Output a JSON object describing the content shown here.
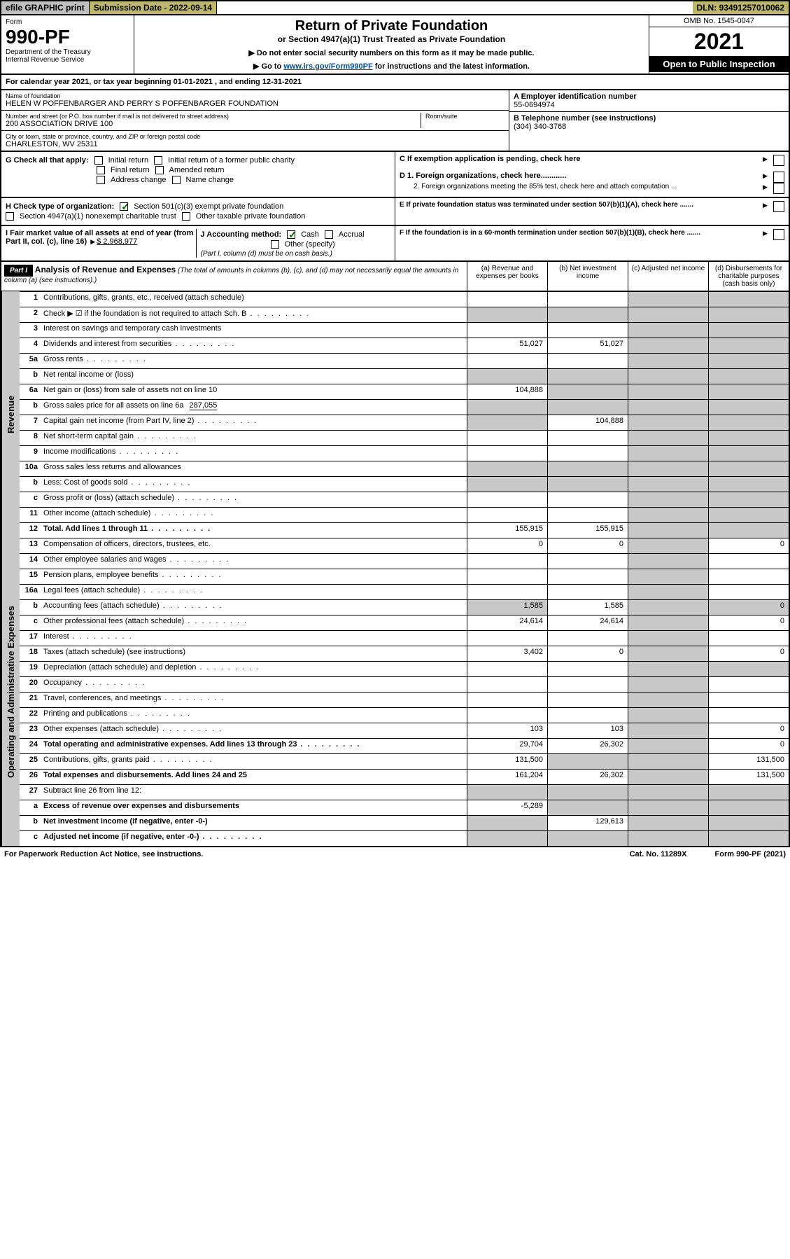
{
  "topbar": {
    "efile": "efile GRAPHIC print",
    "sub_label": "Submission Date",
    "sub_date": "2022-09-14",
    "dln_label": "DLN:",
    "dln": "93491257010062"
  },
  "header": {
    "form_word": "Form",
    "form_no": "990-PF",
    "dept": "Department of the Treasury",
    "irs": "Internal Revenue Service",
    "title": "Return of Private Foundation",
    "subtitle": "or Section 4947(a)(1) Trust Treated as Private Foundation",
    "note1": "▶ Do not enter social security numbers on this form as it may be made public.",
    "note2_pre": "▶ Go to ",
    "note2_link": "www.irs.gov/Form990PF",
    "note2_post": " for instructions and the latest information.",
    "omb": "OMB No. 1545-0047",
    "year": "2021",
    "open": "Open to Public Inspection"
  },
  "calyear": {
    "pre": "For calendar year 2021, or tax year beginning ",
    "begin": "01-01-2021",
    "mid": " , and ending ",
    "end": "12-31-2021"
  },
  "meta": {
    "name_lbl": "Name of foundation",
    "name": "HELEN W POFFENBARGER AND PERRY S POFFENBARGER FOUNDATION",
    "addr_lbl": "Number and street (or P.O. box number if mail is not delivered to street address)",
    "addr": "200 ASSOCIATION DRIVE 100",
    "room_lbl": "Room/suite",
    "city_lbl": "City or town, state or province, country, and ZIP or foreign postal code",
    "city": "CHARLESTON, WV  25311",
    "a_lbl": "A Employer identification number",
    "a_val": "55-0694974",
    "b_lbl": "B Telephone number (see instructions)",
    "b_val": "(304) 340-3768",
    "c_lbl": "C If exemption application is pending, check here",
    "d1": "D 1. Foreign organizations, check here............",
    "d2": "2. Foreign organizations meeting the 85% test, check here and attach computation ...",
    "e": "E  If private foundation status was terminated under section 507(b)(1)(A), check here .......",
    "f": "F  If the foundation is in a 60-month termination under section 507(b)(1)(B), check here .......",
    "g_lbl": "G Check all that apply:",
    "g_opts": [
      "Initial return",
      "Initial return of a former public charity",
      "Final return",
      "Amended return",
      "Address change",
      "Name change"
    ],
    "h_lbl": "H Check type of organization:",
    "h_opt1": "Section 501(c)(3) exempt private foundation",
    "h_opt2": "Section 4947(a)(1) nonexempt charitable trust",
    "h_opt3": "Other taxable private foundation",
    "i_lbl": "I Fair market value of all assets at end of year (from Part II, col. (c), line 16)",
    "i_val": "$  2,968,977",
    "j_lbl": "J Accounting method:",
    "j_cash": "Cash",
    "j_acc": "Accrual",
    "j_other": "Other (specify)",
    "j_note": "(Part I, column (d) must be on cash basis.)"
  },
  "part1": {
    "label": "Part I",
    "title": "Analysis of Revenue and Expenses",
    "note": "(The total of amounts in columns (b), (c), and (d) may not necessarily equal the amounts in column (a) (see instructions).)",
    "col_a": "(a)   Revenue and expenses per books",
    "col_b": "(b)   Net investment income",
    "col_c": "(c)   Adjusted net income",
    "col_d": "(d)   Disbursements for charitable purposes (cash basis only)"
  },
  "sides": {
    "rev": "Revenue",
    "exp": "Operating and Administrative Expenses"
  },
  "rows": [
    {
      "n": "1",
      "t": "Contributions, gifts, grants, etc., received (attach schedule)"
    },
    {
      "n": "2",
      "t": "Check ▶ ☑ if the foundation is not required to attach Sch. B",
      "dots": true,
      "chk": true
    },
    {
      "n": "3",
      "t": "Interest on savings and temporary cash investments"
    },
    {
      "n": "4",
      "t": "Dividends and interest from securities",
      "a": "51,027",
      "b": "51,027",
      "dots": true
    },
    {
      "n": "5a",
      "t": "Gross rents",
      "dots": true
    },
    {
      "n": "b",
      "t": "Net rental income or (loss)",
      "inline": true
    },
    {
      "n": "6a",
      "t": "Net gain or (loss) from sale of assets not on line 10",
      "a": "104,888"
    },
    {
      "n": "b",
      "t": "Gross sales price for all assets on line 6a",
      "inline_val": "287,055"
    },
    {
      "n": "7",
      "t": "Capital gain net income (from Part IV, line 2)",
      "b": "104,888",
      "dots": true
    },
    {
      "n": "8",
      "t": "Net short-term capital gain",
      "dots": true
    },
    {
      "n": "9",
      "t": "Income modifications",
      "dots": true
    },
    {
      "n": "10a",
      "t": "Gross sales less returns and allowances",
      "inline": true
    },
    {
      "n": "b",
      "t": "Less: Cost of goods sold",
      "inline": true,
      "dots": true
    },
    {
      "n": "c",
      "t": "Gross profit or (loss) (attach schedule)",
      "dots": true
    },
    {
      "n": "11",
      "t": "Other income (attach schedule)",
      "dots": true
    },
    {
      "n": "12",
      "t": "Total. Add lines 1 through 11",
      "bold": true,
      "a": "155,915",
      "b": "155,915",
      "dots": true
    }
  ],
  "exp_rows": [
    {
      "n": "13",
      "t": "Compensation of officers, directors, trustees, etc.",
      "a": "0",
      "b": "0",
      "d": "0"
    },
    {
      "n": "14",
      "t": "Other employee salaries and wages",
      "dots": true
    },
    {
      "n": "15",
      "t": "Pension plans, employee benefits",
      "dots": true
    },
    {
      "n": "16a",
      "t": "Legal fees (attach schedule)",
      "dots": true
    },
    {
      "n": "b",
      "t": "Accounting fees (attach schedule)",
      "a": "1,585",
      "b": "1,585",
      "d": "0",
      "dots": true
    },
    {
      "n": "c",
      "t": "Other professional fees (attach schedule)",
      "a": "24,614",
      "b": "24,614",
      "d": "0",
      "dots": true
    },
    {
      "n": "17",
      "t": "Interest",
      "dots": true
    },
    {
      "n": "18",
      "t": "Taxes (attach schedule) (see instructions)",
      "a": "3,402",
      "b": "0",
      "d": "0"
    },
    {
      "n": "19",
      "t": "Depreciation (attach schedule) and depletion",
      "dots": true
    },
    {
      "n": "20",
      "t": "Occupancy",
      "dots": true
    },
    {
      "n": "21",
      "t": "Travel, conferences, and meetings",
      "dots": true
    },
    {
      "n": "22",
      "t": "Printing and publications",
      "dots": true
    },
    {
      "n": "23",
      "t": "Other expenses (attach schedule)",
      "a": "103",
      "b": "103",
      "d": "0",
      "dots": true
    },
    {
      "n": "24",
      "t": "Total operating and administrative expenses. Add lines 13 through 23",
      "bold": true,
      "a": "29,704",
      "b": "26,302",
      "d": "0",
      "dots": true
    },
    {
      "n": "25",
      "t": "Contributions, gifts, grants paid",
      "a": "131,500",
      "d": "131,500",
      "dots": true
    },
    {
      "n": "26",
      "t": "Total expenses and disbursements. Add lines 24 and 25",
      "bold": true,
      "a": "161,204",
      "b": "26,302",
      "d": "131,500"
    },
    {
      "n": "27",
      "t": "Subtract line 26 from line 12:"
    },
    {
      "n": "a",
      "t": "Excess of revenue over expenses and disbursements",
      "bold": true,
      "a": "-5,289"
    },
    {
      "n": "b",
      "t": "Net investment income (if negative, enter -0-)",
      "bold": true,
      "b": "129,613"
    },
    {
      "n": "c",
      "t": "Adjusted net income (if negative, enter -0-)",
      "bold": true,
      "dots": true
    }
  ],
  "footer": {
    "left": "For Paperwork Reduction Act Notice, see instructions.",
    "mid": "Cat. No. 11289X",
    "right": "Form 990-PF (2021)"
  }
}
